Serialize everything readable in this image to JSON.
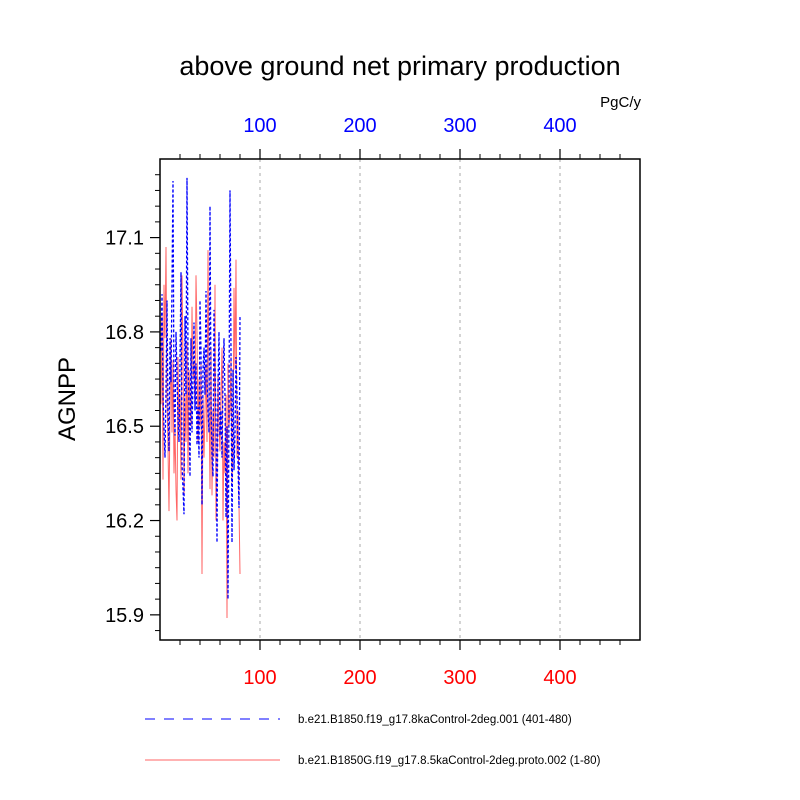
{
  "chart_data": {
    "type": "line",
    "title": "above ground net primary production",
    "ylabel": "AGNPP",
    "units_label": "PgC/y",
    "xlim": [
      0,
      480
    ],
    "ylim": [
      15.82,
      17.35
    ],
    "yticks": [
      15.9,
      16.2,
      16.5,
      16.8,
      17.1
    ],
    "ytick_labels": [
      "15.9",
      "16.2",
      "16.5",
      "16.8",
      "17.1"
    ],
    "xticks_bottom": [
      100,
      200,
      300,
      400
    ],
    "xtick_labels_bottom": [
      "100",
      "200",
      "300",
      "400"
    ],
    "xticks_top": [
      100,
      200,
      300,
      400
    ],
    "xtick_labels_top": [
      "100",
      "200",
      "300",
      "400"
    ],
    "colors": {
      "top_axis": "#0000ff",
      "bottom_axis": "#ff0000"
    },
    "vertical_grid": true,
    "series": [
      {
        "name": "b.e21.B1850.f19_g17.8kaControl-2deg.001 (401-480)",
        "color": "#0000ff",
        "style": "dashed",
        "x": [
          1,
          2,
          3,
          4,
          5,
          6,
          7,
          8,
          9,
          10,
          11,
          12,
          13,
          14,
          15,
          16,
          17,
          18,
          19,
          20,
          21,
          22,
          23,
          24,
          25,
          26,
          27,
          28,
          29,
          30,
          31,
          32,
          33,
          34,
          35,
          36,
          37,
          38,
          39,
          40,
          41,
          42,
          43,
          44,
          45,
          46,
          47,
          48,
          49,
          50,
          51,
          52,
          53,
          54,
          55,
          56,
          57,
          58,
          59,
          60,
          61,
          62,
          63,
          64,
          65,
          66,
          67,
          68,
          69,
          70,
          71,
          72,
          73,
          74,
          75,
          76,
          77,
          78,
          79,
          80
        ],
        "y": [
          16.74,
          16.92,
          16.6,
          16.49,
          16.4,
          16.62,
          16.9,
          16.55,
          16.42,
          16.78,
          16.64,
          16.95,
          17.28,
          16.58,
          16.47,
          16.8,
          16.66,
          16.52,
          16.45,
          16.7,
          16.99,
          16.38,
          16.3,
          16.22,
          16.85,
          16.6,
          17.29,
          16.72,
          16.55,
          16.34,
          16.78,
          16.48,
          16.65,
          16.83,
          16.55,
          16.7,
          16.44,
          16.56,
          16.4,
          16.9,
          16.74,
          16.25,
          16.68,
          16.75,
          16.6,
          16.93,
          16.65,
          16.55,
          16.48,
          17.2,
          16.58,
          16.4,
          16.34,
          16.87,
          16.69,
          16.51,
          16.13,
          16.63,
          16.8,
          16.47,
          16.55,
          16.4,
          16.65,
          16.78,
          16.59,
          16.21,
          16.5,
          15.95,
          16.58,
          17.25,
          16.73,
          16.13,
          16.68,
          16.36,
          16.48,
          16.72,
          16.6,
          16.38,
          16.24,
          16.85
        ]
      },
      {
        "name": "b.e21.B1850G.f19_g17.8.5kaControl-2deg.proto.002 (1-80)",
        "color": "#ff0000",
        "style": "solid",
        "x": [
          1,
          2,
          3,
          4,
          5,
          6,
          7,
          8,
          9,
          10,
          11,
          12,
          13,
          14,
          15,
          16,
          17,
          18,
          19,
          20,
          21,
          22,
          23,
          24,
          25,
          26,
          27,
          28,
          29,
          30,
          31,
          32,
          33,
          34,
          35,
          36,
          37,
          38,
          39,
          40,
          41,
          42,
          43,
          44,
          45,
          46,
          47,
          48,
          49,
          50,
          51,
          52,
          53,
          54,
          55,
          56,
          57,
          58,
          59,
          60,
          61,
          62,
          63,
          64,
          65,
          66,
          67,
          68,
          69,
          70,
          71,
          72,
          73,
          74,
          75,
          76,
          77,
          78,
          79,
          80
        ],
        "y": [
          16.57,
          16.85,
          16.33,
          16.95,
          16.78,
          17.07,
          16.6,
          16.43,
          16.23,
          16.55,
          16.78,
          16.48,
          16.71,
          16.35,
          16.5,
          16.3,
          16.2,
          16.72,
          16.48,
          16.6,
          16.33,
          16.98,
          16.72,
          16.28,
          16.6,
          16.45,
          16.77,
          16.35,
          16.68,
          16.58,
          16.5,
          16.88,
          16.65,
          16.7,
          16.55,
          16.98,
          16.8,
          16.45,
          16.65,
          16.5,
          16.7,
          16.03,
          16.6,
          16.4,
          16.55,
          16.7,
          16.45,
          17.06,
          16.6,
          16.3,
          16.75,
          16.28,
          16.55,
          16.4,
          16.95,
          16.2,
          16.35,
          16.66,
          16.5,
          16.42,
          16.6,
          16.75,
          16.2,
          16.45,
          16.35,
          16.6,
          15.89,
          16.7,
          16.5,
          16.55,
          16.72,
          16.32,
          16.45,
          16.94,
          16.68,
          17.03,
          16.4,
          16.55,
          16.25,
          16.03
        ]
      }
    ]
  }
}
